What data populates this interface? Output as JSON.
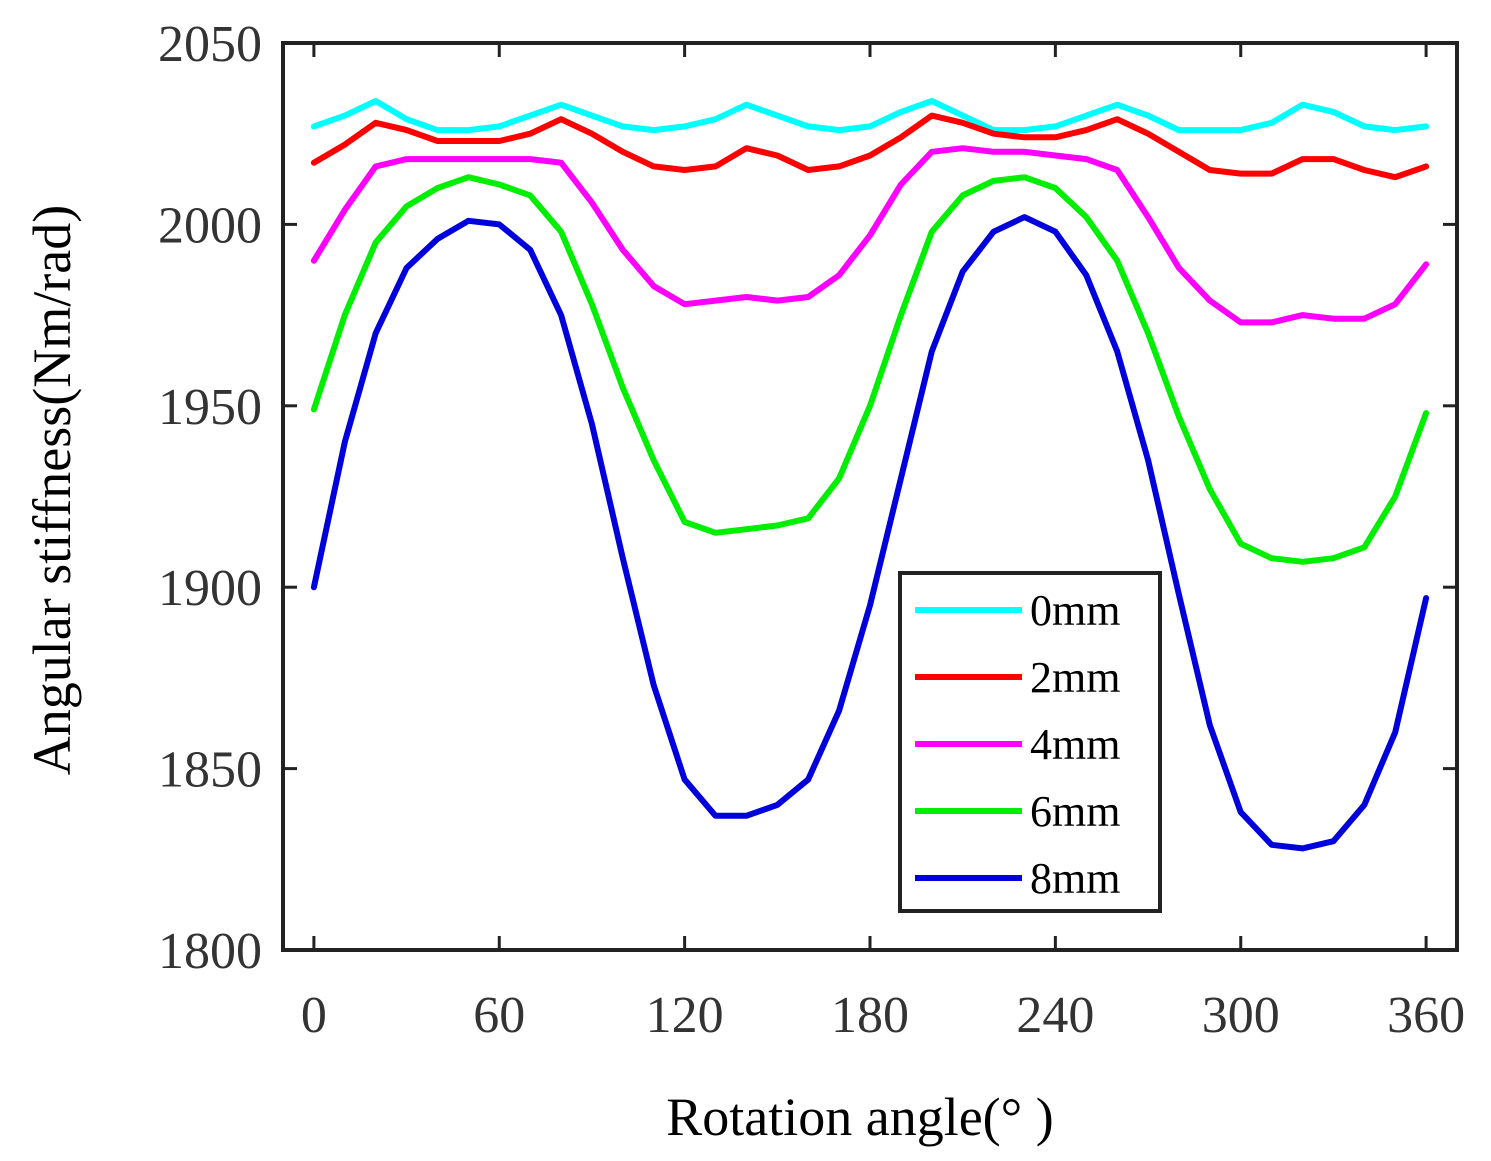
{
  "chart_data": {
    "type": "line",
    "title": "",
    "xlabel": "Rotation angle(° )",
    "ylabel": "Angular stiffness(Nm/rad)",
    "xlim": [
      -10,
      370
    ],
    "ylim": [
      1800,
      2050
    ],
    "xticks": [
      0,
      60,
      120,
      180,
      240,
      300,
      360
    ],
    "yticks": [
      1800,
      1850,
      1900,
      1950,
      2000,
      2050
    ],
    "grid": false,
    "legend_position": "lower-right",
    "x": [
      0,
      10,
      20,
      30,
      40,
      50,
      60,
      70,
      80,
      90,
      100,
      110,
      120,
      130,
      140,
      150,
      160,
      170,
      180,
      190,
      200,
      210,
      220,
      230,
      240,
      250,
      260,
      270,
      280,
      290,
      300,
      310,
      320,
      330,
      340,
      350,
      360
    ],
    "series": [
      {
        "name": "0mm",
        "color": "#00ffff",
        "values": [
          2027,
          2030,
          2034,
          2029,
          2026,
          2026,
          2027,
          2030,
          2033,
          2030,
          2027,
          2026,
          2027,
          2029,
          2033,
          2030,
          2027,
          2026,
          2027,
          2031,
          2034,
          2030,
          2026,
          2026,
          2027,
          2030,
          2033,
          2030,
          2026,
          2026,
          2026,
          2028,
          2033,
          2031,
          2027,
          2026,
          2027
        ]
      },
      {
        "name": "2mm",
        "color": "#ff0000",
        "values": [
          2017,
          2022,
          2028,
          2026,
          2023,
          2023,
          2023,
          2025,
          2029,
          2025,
          2020,
          2016,
          2015,
          2016,
          2021,
          2019,
          2015,
          2016,
          2019,
          2024,
          2030,
          2028,
          2025,
          2024,
          2024,
          2026,
          2029,
          2025,
          2020,
          2015,
          2014,
          2014,
          2018,
          2018,
          2015,
          2013,
          2016
        ]
      },
      {
        "name": "4mm",
        "color": "#ff00ff",
        "values": [
          1990,
          2004,
          2016,
          2018,
          2018,
          2018,
          2018,
          2018,
          2017,
          2006,
          1993,
          1983,
          1978,
          1979,
          1980,
          1979,
          1980,
          1986,
          1997,
          2011,
          2020,
          2021,
          2020,
          2020,
          2019,
          2018,
          2015,
          2002,
          1988,
          1979,
          1973,
          1973,
          1975,
          1974,
          1974,
          1978,
          1989
        ]
      },
      {
        "name": "6mm",
        "color": "#00ee00",
        "values": [
          1949,
          1975,
          1995,
          2005,
          2010,
          2013,
          2011,
          2008,
          1998,
          1978,
          1955,
          1935,
          1918,
          1915,
          1916,
          1917,
          1919,
          1930,
          1950,
          1975,
          1998,
          2008,
          2012,
          2013,
          2010,
          2002,
          1990,
          1970,
          1947,
          1927,
          1912,
          1908,
          1907,
          1908,
          1911,
          1925,
          1948
        ]
      },
      {
        "name": "8mm",
        "color": "#0000dd",
        "values": [
          1900,
          1940,
          1970,
          1988,
          1996,
          2001,
          2000,
          1993,
          1975,
          1945,
          1908,
          1873,
          1847,
          1837,
          1837,
          1840,
          1847,
          1866,
          1895,
          1930,
          1965,
          1987,
          1998,
          2002,
          1998,
          1986,
          1965,
          1935,
          1898,
          1862,
          1838,
          1829,
          1828,
          1830,
          1840,
          1860,
          1897
        ]
      }
    ]
  }
}
